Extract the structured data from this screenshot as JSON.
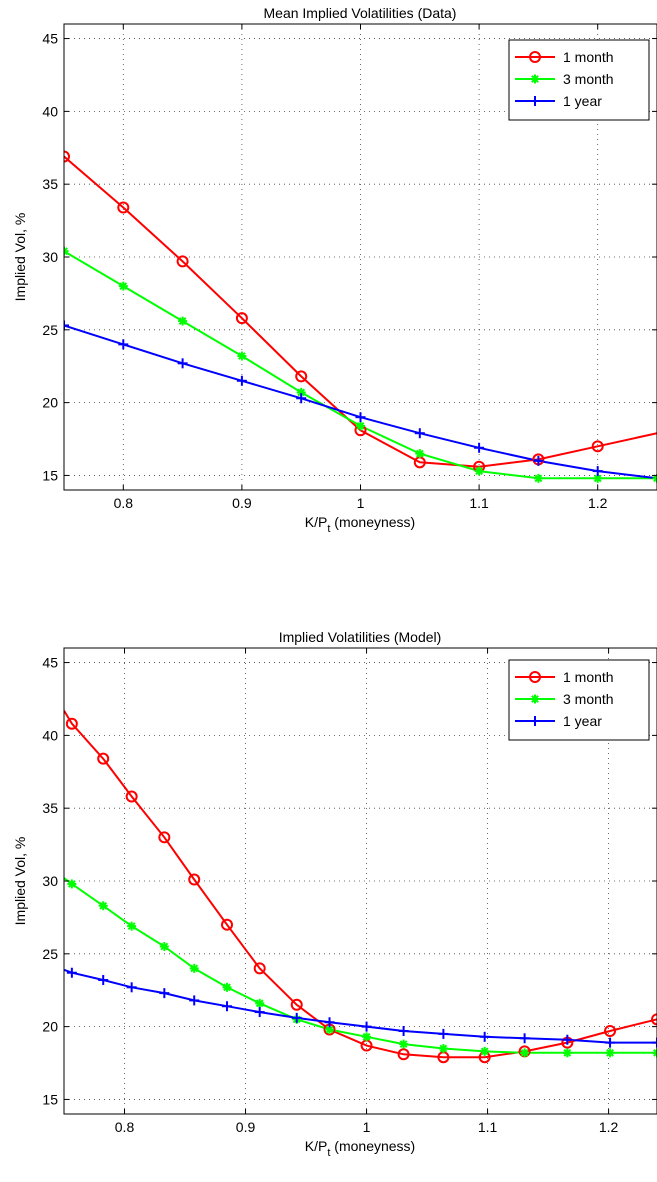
{
  "chart_data": [
    {
      "type": "line",
      "title": "Mean Implied Volatilities (Data)",
      "xlabel_main": "K/P",
      "xlabel_sub": "t",
      "xlabel_suffix": " (moneyness)",
      "ylabel": "Implied Vol, %",
      "xlim": [
        0.75,
        1.25
      ],
      "ylim": [
        14,
        46
      ],
      "xticks": [
        0.8,
        0.9,
        1,
        1.1,
        1.2
      ],
      "xtick_labels": [
        "0.8",
        "0.9",
        "1",
        "1.1",
        "1.2"
      ],
      "yticks": [
        15,
        20,
        25,
        30,
        35,
        40,
        45
      ],
      "ytick_labels": [
        "15",
        "20",
        "25",
        "30",
        "35",
        "40",
        "45"
      ],
      "grid": true,
      "legend_position": "top-right",
      "series": [
        {
          "name": "1 month",
          "color": "#ff0000",
          "marker": "circle",
          "x": [
            0.75,
            0.8,
            0.85,
            0.9,
            0.95,
            1.0,
            1.05,
            1.1,
            1.15,
            1.2,
            1.25
          ],
          "y": [
            36.9,
            33.4,
            29.7,
            25.8,
            21.8,
            18.1,
            15.9,
            15.6,
            16.1,
            17.0,
            17.9
          ],
          "marked": [
            true,
            true,
            true,
            true,
            true,
            true,
            true,
            true,
            true,
            true,
            false
          ]
        },
        {
          "name": "3 month",
          "color": "#00ff00",
          "marker": "star",
          "x": [
            0.75,
            0.8,
            0.85,
            0.9,
            0.95,
            1.0,
            1.05,
            1.1,
            1.15,
            1.2,
            1.25
          ],
          "y": [
            30.4,
            28.0,
            25.6,
            23.2,
            20.7,
            18.4,
            16.5,
            15.3,
            14.8,
            14.8,
            14.8
          ],
          "marked": [
            true,
            true,
            true,
            true,
            true,
            true,
            true,
            true,
            true,
            true,
            true
          ]
        },
        {
          "name": "1 year",
          "color": "#0000ff",
          "marker": "plus",
          "x": [
            0.75,
            0.8,
            0.85,
            0.9,
            0.95,
            1.0,
            1.05,
            1.1,
            1.15,
            1.2,
            1.25
          ],
          "y": [
            25.3,
            24.0,
            22.7,
            21.5,
            20.3,
            19.0,
            17.9,
            16.9,
            16.0,
            15.3,
            14.8
          ],
          "marked": [
            true,
            true,
            true,
            true,
            true,
            true,
            true,
            true,
            true,
            true,
            false
          ]
        }
      ]
    },
    {
      "type": "line",
      "title": "Implied Volatilities (Model)",
      "xlabel_main": "K/P",
      "xlabel_sub": "t",
      "xlabel_suffix": " (moneyness)",
      "ylabel": "Implied Vol, %",
      "xlim": [
        0.75,
        1.24
      ],
      "ylim": [
        14,
        46
      ],
      "xticks": [
        0.8,
        0.9,
        1,
        1.1,
        1.2
      ],
      "xtick_labels": [
        "0.8",
        "0.9",
        "1",
        "1.1",
        "1.2"
      ],
      "yticks": [
        15,
        20,
        25,
        30,
        35,
        40,
        45
      ],
      "ytick_labels": [
        "15",
        "20",
        "25",
        "30",
        "35",
        "40",
        "45"
      ],
      "grid": true,
      "legend_position": "top-right",
      "series": [
        {
          "name": "1 month",
          "color": "#ff0000",
          "marker": "circle",
          "x": [
            0.75,
            0.7565,
            0.7824,
            0.8059,
            0.8329,
            0.8576,
            0.8847,
            0.9117,
            0.9423,
            0.9694,
            1.0,
            1.0306,
            1.0635,
            1.0976,
            1.1306,
            1.1659,
            1.2012,
            1.24
          ],
          "y": [
            41.7,
            40.8,
            38.4,
            35.8,
            33.0,
            30.1,
            27.0,
            24.0,
            21.5,
            19.8,
            18.7,
            18.1,
            17.9,
            17.9,
            18.3,
            18.9,
            19.7,
            20.5
          ],
          "marked": [
            false,
            true,
            true,
            true,
            true,
            true,
            true,
            true,
            true,
            true,
            true,
            true,
            true,
            true,
            true,
            true,
            true,
            true
          ]
        },
        {
          "name": "3 month",
          "color": "#00ff00",
          "marker": "star",
          "x": [
            0.75,
            0.7565,
            0.7824,
            0.8059,
            0.8329,
            0.8576,
            0.8847,
            0.9117,
            0.9423,
            0.9694,
            1.0,
            1.0306,
            1.0635,
            1.0976,
            1.1306,
            1.1659,
            1.2012,
            1.24
          ],
          "y": [
            30.2,
            29.8,
            28.3,
            26.9,
            25.5,
            24.0,
            22.7,
            21.6,
            20.5,
            19.8,
            19.3,
            18.8,
            18.5,
            18.3,
            18.2,
            18.2,
            18.2,
            18.2
          ],
          "marked": [
            false,
            true,
            true,
            true,
            true,
            true,
            true,
            true,
            true,
            true,
            true,
            true,
            true,
            true,
            true,
            true,
            true,
            true
          ]
        },
        {
          "name": "1 year",
          "color": "#0000ff",
          "marker": "plus",
          "x": [
            0.75,
            0.7565,
            0.7824,
            0.8059,
            0.8329,
            0.8576,
            0.8847,
            0.9117,
            0.9423,
            0.9694,
            1.0,
            1.0306,
            1.0635,
            1.0976,
            1.1306,
            1.1659,
            1.2012,
            1.24
          ],
          "y": [
            23.9,
            23.7,
            23.2,
            22.7,
            22.3,
            21.8,
            21.4,
            21.0,
            20.6,
            20.3,
            20.0,
            19.7,
            19.5,
            19.3,
            19.2,
            19.1,
            18.9,
            18.9
          ],
          "marked": [
            false,
            true,
            true,
            true,
            true,
            true,
            true,
            true,
            true,
            true,
            true,
            true,
            true,
            true,
            true,
            true,
            true,
            true
          ]
        }
      ]
    }
  ]
}
